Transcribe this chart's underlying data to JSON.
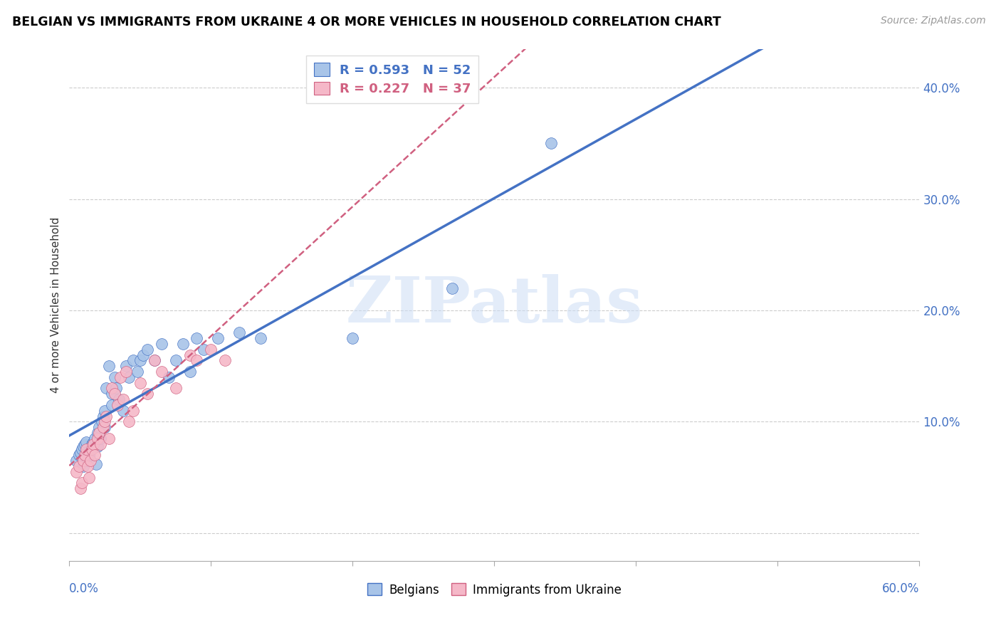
{
  "title": "BELGIAN VS IMMIGRANTS FROM UKRAINE 4 OR MORE VEHICLES IN HOUSEHOLD CORRELATION CHART",
  "source": "Source: ZipAtlas.com",
  "ylabel": "4 or more Vehicles in Household",
  "y_ticks": [
    0.0,
    0.1,
    0.2,
    0.3,
    0.4
  ],
  "y_tick_labels": [
    "",
    "10.0%",
    "20.0%",
    "30.0%",
    "40.0%"
  ],
  "x_ticks": [
    0.0,
    0.1,
    0.2,
    0.3,
    0.4,
    0.5,
    0.6
  ],
  "xlim": [
    0.0,
    0.6
  ],
  "ylim": [
    -0.025,
    0.435
  ],
  "belgians_R": 0.593,
  "belgians_N": 52,
  "ukraine_R": 0.227,
  "ukraine_N": 37,
  "belgians_color": "#a8c4e8",
  "ukraine_color": "#f5b8c8",
  "belgians_line_color": "#4472c4",
  "ukraine_line_color": "#d06080",
  "watermark": "ZIPatlas",
  "belgians_x": [
    0.005,
    0.007,
    0.008,
    0.009,
    0.01,
    0.01,
    0.011,
    0.012,
    0.013,
    0.014,
    0.015,
    0.016,
    0.017,
    0.018,
    0.019,
    0.02,
    0.02,
    0.021,
    0.022,
    0.023,
    0.024,
    0.025,
    0.025,
    0.026,
    0.028,
    0.03,
    0.03,
    0.032,
    0.033,
    0.035,
    0.038,
    0.04,
    0.042,
    0.045,
    0.048,
    0.05,
    0.052,
    0.055,
    0.06,
    0.065,
    0.07,
    0.075,
    0.08,
    0.085,
    0.09,
    0.095,
    0.105,
    0.12,
    0.135,
    0.2,
    0.27,
    0.34
  ],
  "belgians_y": [
    0.065,
    0.07,
    0.072,
    0.075,
    0.06,
    0.078,
    0.08,
    0.082,
    0.065,
    0.07,
    0.075,
    0.08,
    0.082,
    0.085,
    0.062,
    0.078,
    0.09,
    0.095,
    0.085,
    0.1,
    0.105,
    0.095,
    0.11,
    0.13,
    0.15,
    0.115,
    0.125,
    0.14,
    0.13,
    0.12,
    0.11,
    0.15,
    0.14,
    0.155,
    0.145,
    0.155,
    0.16,
    0.165,
    0.155,
    0.17,
    0.14,
    0.155,
    0.17,
    0.145,
    0.175,
    0.165,
    0.175,
    0.18,
    0.175,
    0.175,
    0.22,
    0.35
  ],
  "ukraine_x": [
    0.005,
    0.007,
    0.008,
    0.009,
    0.01,
    0.011,
    0.012,
    0.013,
    0.014,
    0.015,
    0.016,
    0.017,
    0.018,
    0.02,
    0.021,
    0.022,
    0.024,
    0.025,
    0.026,
    0.028,
    0.03,
    0.032,
    0.034,
    0.036,
    0.038,
    0.04,
    0.042,
    0.045,
    0.05,
    0.055,
    0.06,
    0.065,
    0.075,
    0.085,
    0.09,
    0.1,
    0.11
  ],
  "ukraine_y": [
    0.055,
    0.06,
    0.04,
    0.045,
    0.065,
    0.07,
    0.075,
    0.06,
    0.05,
    0.065,
    0.075,
    0.08,
    0.07,
    0.085,
    0.09,
    0.08,
    0.095,
    0.1,
    0.105,
    0.085,
    0.13,
    0.125,
    0.115,
    0.14,
    0.12,
    0.145,
    0.1,
    0.11,
    0.135,
    0.125,
    0.155,
    0.145,
    0.13,
    0.16,
    0.155,
    0.165,
    0.155
  ]
}
